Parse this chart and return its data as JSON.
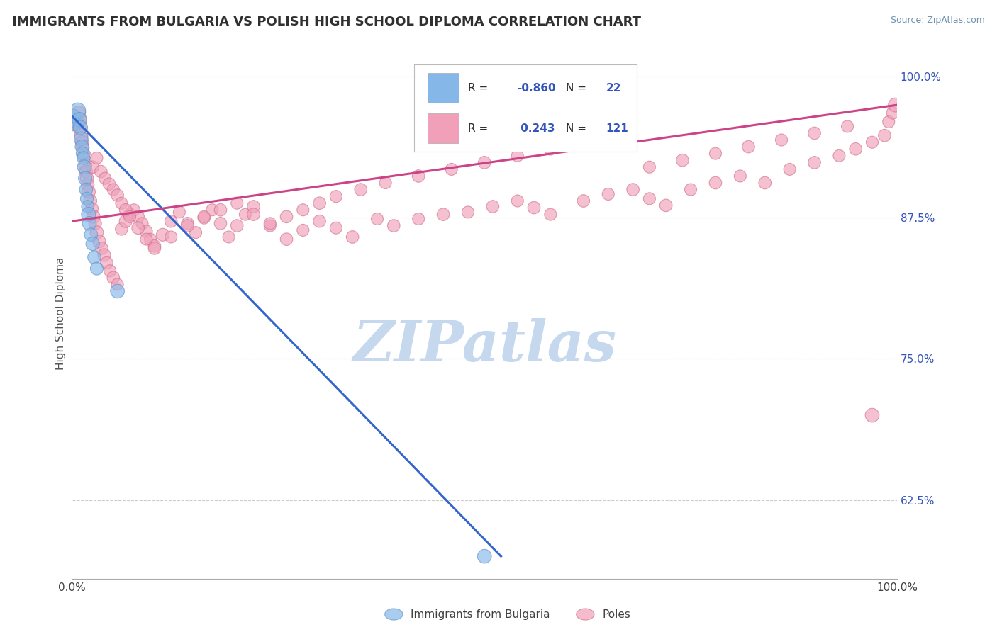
{
  "title": "IMMIGRANTS FROM BULGARIA VS POLISH HIGH SCHOOL DIPLOMA CORRELATION CHART",
  "source": "Source: ZipAtlas.com",
  "ylabel": "High School Diploma",
  "right_ytick_labels": [
    "62.5%",
    "75.0%",
    "87.5%",
    "100.0%"
  ],
  "right_ytick_vals": [
    0.625,
    0.75,
    0.875,
    1.0
  ],
  "blue_color": "#85B8E8",
  "blue_edge_color": "#6090C8",
  "pink_color": "#F0A0B8",
  "pink_edge_color": "#D07090",
  "blue_line_color": "#3366CC",
  "pink_line_color": "#CC4488",
  "watermark_text": "ZIPatlas",
  "watermark_color": "#C5D8EE",
  "bg_color": "#FFFFFF",
  "grid_color": "#CCCCCC",
  "title_color": "#303030",
  "source_color": "#7090B0",
  "legend_R_N_color": "#3355BB",
  "xmin": 0.0,
  "xmax": 1.0,
  "ymin": 0.555,
  "ymax": 1.025,
  "blue_trendline_x": [
    0.0,
    0.52
  ],
  "blue_trendline_y": [
    0.965,
    0.575
  ],
  "pink_trendline_x": [
    0.0,
    1.0
  ],
  "pink_trendline_y": [
    0.872,
    0.975
  ],
  "blue_x": [
    0.002,
    0.004,
    0.007,
    0.009,
    0.01,
    0.011,
    0.012,
    0.013,
    0.014,
    0.015,
    0.016,
    0.017,
    0.018,
    0.019,
    0.02,
    0.021,
    0.023,
    0.025,
    0.027,
    0.03,
    0.055,
    0.5
  ],
  "blue_y": [
    0.965,
    0.958,
    0.97,
    0.962,
    0.955,
    0.945,
    0.938,
    0.932,
    0.928,
    0.92,
    0.91,
    0.9,
    0.892,
    0.885,
    0.878,
    0.87,
    0.86,
    0.852,
    0.84,
    0.83,
    0.81,
    0.575
  ],
  "blue_s": [
    200,
    180,
    250,
    220,
    210,
    200,
    190,
    180,
    170,
    200,
    190,
    180,
    170,
    160,
    210,
    200,
    180,
    190,
    180,
    170,
    200,
    200
  ],
  "pink_x": [
    0.003,
    0.006,
    0.008,
    0.009,
    0.01,
    0.011,
    0.012,
    0.013,
    0.015,
    0.016,
    0.017,
    0.018,
    0.019,
    0.02,
    0.022,
    0.024,
    0.026,
    0.028,
    0.03,
    0.033,
    0.036,
    0.039,
    0.042,
    0.046,
    0.05,
    0.055,
    0.06,
    0.065,
    0.07,
    0.075,
    0.08,
    0.085,
    0.09,
    0.095,
    0.1,
    0.11,
    0.12,
    0.13,
    0.14,
    0.15,
    0.16,
    0.17,
    0.18,
    0.19,
    0.2,
    0.21,
    0.22,
    0.24,
    0.26,
    0.28,
    0.3,
    0.32,
    0.34,
    0.37,
    0.39,
    0.42,
    0.45,
    0.48,
    0.51,
    0.54,
    0.56,
    0.58,
    0.62,
    0.65,
    0.68,
    0.7,
    0.72,
    0.75,
    0.78,
    0.81,
    0.84,
    0.87,
    0.9,
    0.93,
    0.95,
    0.97,
    0.985,
    0.99,
    0.995,
    0.998,
    0.025,
    0.03,
    0.035,
    0.04,
    0.045,
    0.05,
    0.055,
    0.06,
    0.065,
    0.07,
    0.08,
    0.09,
    0.1,
    0.12,
    0.14,
    0.16,
    0.18,
    0.2,
    0.22,
    0.24,
    0.26,
    0.28,
    0.3,
    0.32,
    0.35,
    0.38,
    0.42,
    0.46,
    0.5,
    0.54,
    0.58,
    0.62,
    0.66,
    0.7,
    0.74,
    0.78,
    0.82,
    0.86,
    0.9,
    0.94,
    0.97
  ],
  "pink_y": [
    0.958,
    0.96,
    0.968,
    0.962,
    0.955,
    0.948,
    0.942,
    0.937,
    0.93,
    0.922,
    0.916,
    0.91,
    0.904,
    0.898,
    0.89,
    0.883,
    0.876,
    0.87,
    0.862,
    0.854,
    0.848,
    0.842,
    0.835,
    0.828,
    0.822,
    0.816,
    0.865,
    0.872,
    0.878,
    0.882,
    0.876,
    0.87,
    0.863,
    0.856,
    0.85,
    0.86,
    0.872,
    0.88,
    0.87,
    0.862,
    0.875,
    0.882,
    0.87,
    0.858,
    0.868,
    0.878,
    0.885,
    0.868,
    0.856,
    0.864,
    0.872,
    0.866,
    0.858,
    0.874,
    0.868,
    0.874,
    0.878,
    0.88,
    0.885,
    0.89,
    0.884,
    0.878,
    0.89,
    0.896,
    0.9,
    0.892,
    0.886,
    0.9,
    0.906,
    0.912,
    0.906,
    0.918,
    0.924,
    0.93,
    0.936,
    0.942,
    0.948,
    0.96,
    0.968,
    0.975,
    0.92,
    0.928,
    0.916,
    0.91,
    0.905,
    0.9,
    0.895,
    0.888,
    0.882,
    0.876,
    0.866,
    0.856,
    0.848,
    0.858,
    0.868,
    0.876,
    0.882,
    0.888,
    0.878,
    0.87,
    0.876,
    0.882,
    0.888,
    0.894,
    0.9,
    0.906,
    0.912,
    0.918,
    0.924,
    0.93,
    0.936,
    0.942,
    0.948,
    0.92,
    0.926,
    0.932,
    0.938,
    0.944,
    0.95,
    0.956,
    0.7
  ],
  "pink_s": [
    200,
    190,
    200,
    190,
    200,
    190,
    180,
    170,
    190,
    180,
    170,
    180,
    170,
    190,
    180,
    170,
    180,
    170,
    180,
    170,
    160,
    170,
    160,
    150,
    160,
    150,
    160,
    170,
    160,
    150,
    160,
    150,
    160,
    150,
    160,
    170,
    160,
    150,
    160,
    150,
    160,
    150,
    160,
    150,
    160,
    150,
    160,
    150,
    160,
    150,
    160,
    150,
    160,
    150,
    160,
    150,
    160,
    150,
    160,
    150,
    160,
    150,
    160,
    150,
    160,
    150,
    160,
    150,
    160,
    150,
    160,
    150,
    160,
    150,
    160,
    150,
    160,
    150,
    160,
    200,
    160,
    150,
    160,
    150,
    160,
    150,
    160,
    150,
    160,
    150,
    160,
    150,
    160,
    150,
    160,
    150,
    160,
    150,
    160,
    150,
    160,
    150,
    160,
    150,
    160,
    150,
    160,
    150,
    160,
    150,
    160,
    150,
    160,
    150,
    160,
    150,
    160,
    150,
    160,
    150,
    200
  ]
}
